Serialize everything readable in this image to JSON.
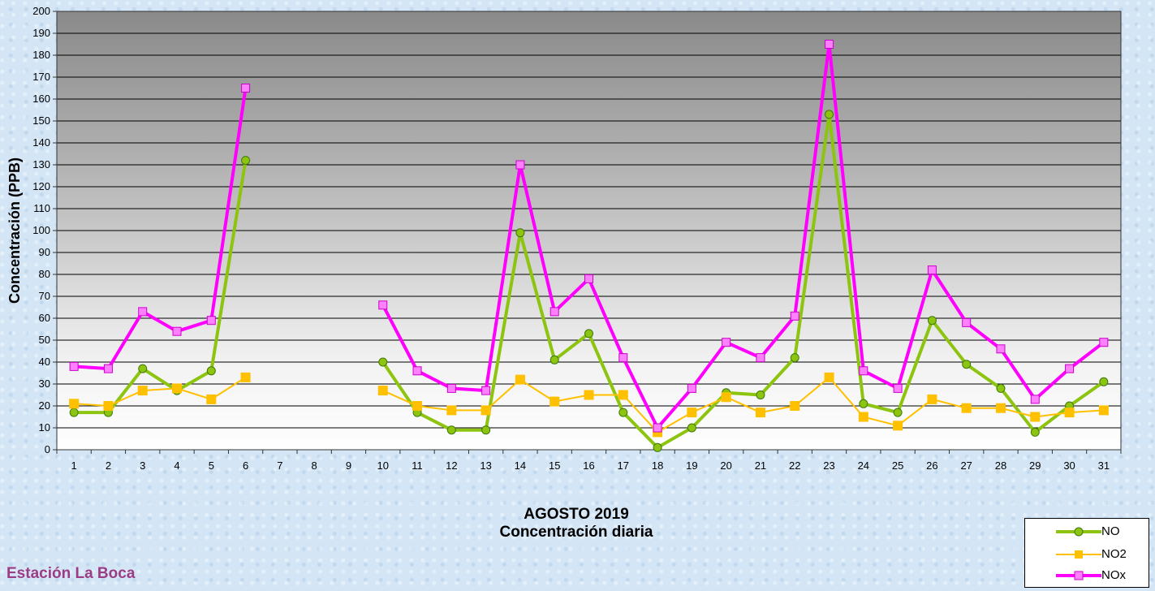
{
  "chart_data": {
    "type": "line",
    "title": "AGOSTO 2019",
    "subtitle": "Concentración diaria",
    "station": "Estación La Boca",
    "ylabel": "Concentración  (PPB)",
    "xlabel": "",
    "ylim": [
      0,
      200
    ],
    "ytick_step": 10,
    "grid": true,
    "legend_position": "bottom-right",
    "categories": [
      "1",
      "2",
      "3",
      "4",
      "5",
      "6",
      "7",
      "8",
      "9",
      "10",
      "11",
      "12",
      "13",
      "14",
      "15",
      "16",
      "17",
      "18",
      "19",
      "20",
      "21",
      "22",
      "23",
      "24",
      "25",
      "26",
      "27",
      "28",
      "29",
      "30",
      "31"
    ],
    "series": [
      {
        "name": "NO",
        "color": "#8cc40f",
        "marker": "circle",
        "values": [
          17,
          17,
          37,
          27,
          36,
          132,
          null,
          null,
          null,
          40,
          17,
          9,
          9,
          99,
          41,
          53,
          17,
          1,
          10,
          26,
          25,
          42,
          153,
          21,
          17,
          59,
          39,
          28,
          8,
          20,
          31
        ]
      },
      {
        "name": "NO2",
        "color": "#ffc000",
        "marker": "square",
        "values": [
          21,
          20,
          27,
          28,
          23,
          33,
          null,
          null,
          null,
          27,
          20,
          18,
          18,
          32,
          22,
          25,
          25,
          8,
          17,
          24,
          17,
          20,
          33,
          15,
          11,
          23,
          19,
          19,
          15,
          17,
          18
        ]
      },
      {
        "name": "NOx",
        "color": "#ff00ff",
        "marker": "square",
        "values": [
          38,
          37,
          63,
          54,
          59,
          165,
          null,
          null,
          null,
          66,
          36,
          28,
          27,
          130,
          63,
          78,
          42,
          10,
          28,
          49,
          42,
          61,
          185,
          36,
          28,
          82,
          58,
          46,
          23,
          37,
          49
        ]
      }
    ]
  }
}
